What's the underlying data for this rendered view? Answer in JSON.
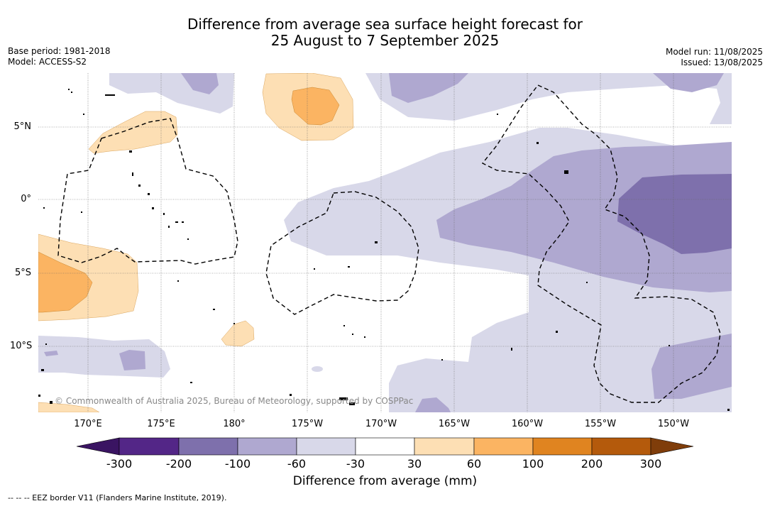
{
  "title": {
    "line1": "Difference from average sea surface height forecast for",
    "line2": "25 August to 7 September 2025"
  },
  "meta_left": {
    "base_period": "Base period: 1981-2018",
    "model": "Model: ACCESS-S2"
  },
  "meta_right": {
    "model_run": "Model run: 11/08/2025",
    "issued": "Issued: 13/08/2025"
  },
  "lat_labels": [
    "5°N",
    "0°",
    "5°S",
    "10°S"
  ],
  "lon_labels": [
    "170°E",
    "175°E",
    "180°",
    "175°W",
    "170°W",
    "165°W",
    "160°W",
    "155°W",
    "150°W"
  ],
  "colorbar": {
    "labels": [
      "-300",
      "-200",
      "-100",
      "-60",
      "-30",
      "30",
      "60",
      "100",
      "200",
      "300"
    ],
    "colors": [
      "#3a1462",
      "#532687",
      "#7e70ac",
      "#afa8d0",
      "#d8d8e9",
      "#ffffff",
      "#fddfb4",
      "#fbb462",
      "#e08420",
      "#b45a0c",
      "#7f3d0a"
    ],
    "title": "Difference from average (mm)"
  },
  "credit": "© Commonwealth of Australia 2025, Bureau of Meteorology, supported by COSPPac",
  "legend_note": "--  --  -- EEZ border V11 (Flanders Marine Institute, 2019)."
}
